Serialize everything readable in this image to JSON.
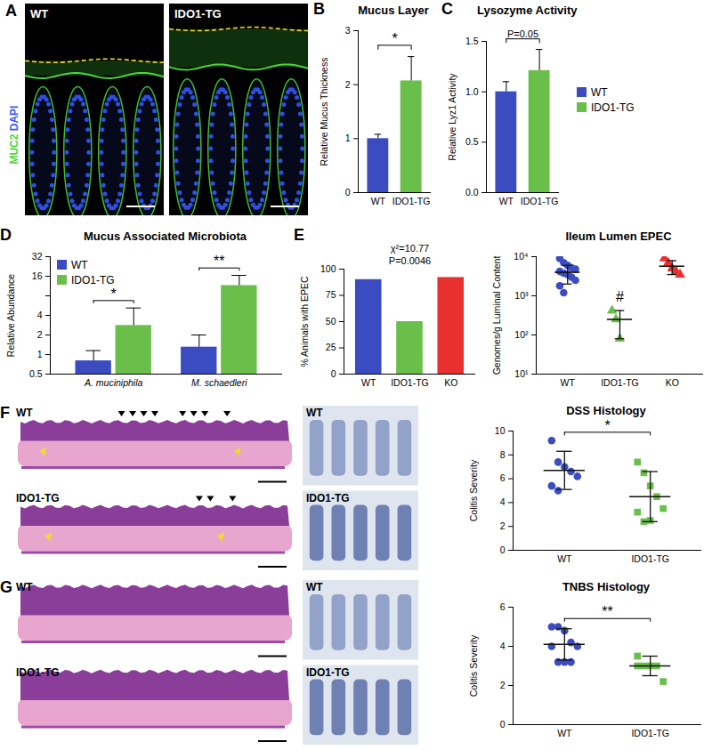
{
  "images": [
    {
      "panel": "A",
      "labels": [
        "WT",
        "IDO1-TG"
      ],
      "stain_labels": [
        {
          "text": "MUC2",
          "color": "#4cd43c"
        },
        {
          "text": "DAPI",
          "color": "#3a5bff"
        }
      ]
    },
    {
      "panel": "F",
      "labels": [
        "WT",
        "IDO1-TG"
      ]
    },
    {
      "panel": "G",
      "labels": [
        "WT",
        "IDO1-TG"
      ]
    }
  ],
  "chart_data": [
    {
      "panel": "B",
      "type": "bar",
      "title": "Mucus Layer",
      "y_label": "Relative Mucus Thickness",
      "categories": [
        "WT",
        "IDO1-TG"
      ],
      "values": [
        1.0,
        2.07
      ],
      "errors": [
        0.08,
        0.45
      ],
      "colors": [
        "#3b4cc0",
        "#6abf4b"
      ],
      "ylim": [
        0,
        3
      ],
      "yticks": [
        0,
        1,
        2,
        3
      ],
      "annotations": [
        {
          "text": "*",
          "from": "WT",
          "to": "IDO1-TG"
        }
      ]
    },
    {
      "panel": "C",
      "type": "bar",
      "title": "Lysozyme Activity",
      "y_label": "Relative Lyz1 Activity",
      "categories": [
        "WT",
        "IDO1-TG"
      ],
      "values": [
        1.0,
        1.21
      ],
      "errors": [
        0.1,
        0.21
      ],
      "colors": [
        "#3b4cc0",
        "#6abf4b"
      ],
      "ylim": [
        0,
        1.5
      ],
      "yticks": [
        {
          "value": 0,
          "label": "0.0"
        },
        0.5,
        {
          "value": 1,
          "label": "1.0"
        },
        1.5
      ],
      "annotations": [
        {
          "text": "P=0.05",
          "from": "WT",
          "to": "IDO1-TG"
        }
      ],
      "legend": "right"
    },
    {
      "panel": "D",
      "type": "bar",
      "title": "Mucus Associated Microbiota",
      "y_label": "Relative Abundance",
      "categories": [
        "A. muciniphila",
        "M. schaedleri"
      ],
      "series": [
        {
          "name": "WT",
          "color": "#3b4cc0",
          "values": [
            0.8,
            1.3
          ],
          "errors": [
            0.35,
            0.7
          ]
        },
        {
          "name": "IDO1-TG",
          "color": "#6abf4b",
          "values": [
            2.8,
            11.5
          ],
          "errors": [
            2.4,
            5.0
          ]
        }
      ],
      "log": "y",
      "ylim": [
        0.5,
        32
      ],
      "yticks": [
        0.5,
        1,
        2,
        4,
        8,
        16,
        32
      ],
      "annotations": [
        {
          "text": "*",
          "group": "A. muciniphila"
        },
        {
          "text": "**",
          "group": "M. schaedleri"
        }
      ],
      "legend": "top-left"
    },
    {
      "panel": "E",
      "type": "bar",
      "y_label": "% Animals with EPEC",
      "categories": [
        "WT",
        "IDO1-TG",
        "KO"
      ],
      "values": [
        90,
        50,
        92
      ],
      "colors": [
        "#3b4cc0",
        "#6abf4b",
        "#e8302e"
      ],
      "ylim": [
        0,
        100
      ],
      "yticks": [
        0,
        25,
        50,
        75,
        100
      ],
      "annotations": [
        {
          "text": "χ²=10.77"
        },
        {
          "text": "P=0.0046"
        }
      ]
    },
    {
      "type": "scatter",
      "title": "Ileum Lumen EPEC",
      "y_label": "Genomes/g Luminal Content",
      "series": [
        {
          "name": "WT",
          "color": "#3b4cc0",
          "marker": "circle",
          "values": [
            9000,
            7000,
            6000,
            5200,
            4800,
            4200,
            3800,
            3500,
            3000,
            2500,
            1800,
            1200
          ],
          "mean": 4000,
          "sd": 2000
        },
        {
          "name": "IDO1-TG",
          "color": "#6abf4b",
          "marker": "triangle",
          "values": [
            420,
            250,
            80
          ],
          "mean": 250,
          "sd": 170
        },
        {
          "name": "KO",
          "color": "#e8302e",
          "marker": "triangle",
          "values": [
            9000,
            7000,
            5000,
            4200,
            3500
          ],
          "mean": 5700,
          "sd": 2200
        }
      ],
      "log": "y",
      "ylim": [
        10,
        10000
      ],
      "yticks": [
        {
          "value": 10,
          "label": "10¹"
        },
        {
          "value": 100,
          "label": "10²"
        },
        {
          "value": 1000,
          "label": "10³"
        },
        {
          "value": 10000,
          "label": "10⁴"
        }
      ],
      "annotations": [
        {
          "text": "#",
          "at": "IDO1-TG"
        }
      ]
    },
    {
      "type": "scatter",
      "title": "DSS Histology",
      "y_label": "Colitis Severity",
      "series": [
        {
          "name": "WT",
          "color": "#3b4cc0",
          "marker": "circle",
          "values": [
            9.2,
            7.4,
            7.0,
            6.6,
            6.2,
            5.4,
            5.0
          ],
          "mean": 6.7,
          "sd": 1.6
        },
        {
          "name": "IDO1-TG",
          "color": "#6abf4b",
          "marker": "square",
          "values": [
            7.4,
            6.5,
            5.4,
            4.5,
            3.5,
            3.2,
            2.4,
            2.5
          ],
          "mean": 4.5,
          "sd": 2.1
        }
      ],
      "ylim": [
        0,
        10
      ],
      "yticks": [
        0,
        2,
        4,
        6,
        8,
        10
      ],
      "annotations": [
        {
          "text": "*",
          "from": "WT",
          "to": "IDO1-TG"
        }
      ]
    },
    {
      "type": "scatter",
      "title": "TNBS Histology",
      "y_label": "Colitis Severity",
      "series": [
        {
          "name": "WT",
          "color": "#3b4cc0",
          "marker": "circle",
          "values": [
            5.0,
            5.0,
            4.8,
            4.2,
            4.0,
            4.0,
            3.2,
            3.2,
            3.2
          ],
          "mean": 4.1,
          "sd": 0.8
        },
        {
          "name": "IDO1-TG",
          "color": "#6abf4b",
          "marker": "square",
          "values": [
            3.5,
            3.0,
            3.0,
            3.0,
            2.2,
            3.0
          ],
          "mean": 3.0,
          "sd": 0.5
        }
      ],
      "ylim": [
        0,
        6
      ],
      "yticks": [
        0,
        2,
        4,
        6
      ],
      "annotations": [
        {
          "text": "**",
          "from": "WT",
          "to": "IDO1-TG"
        }
      ]
    }
  ]
}
